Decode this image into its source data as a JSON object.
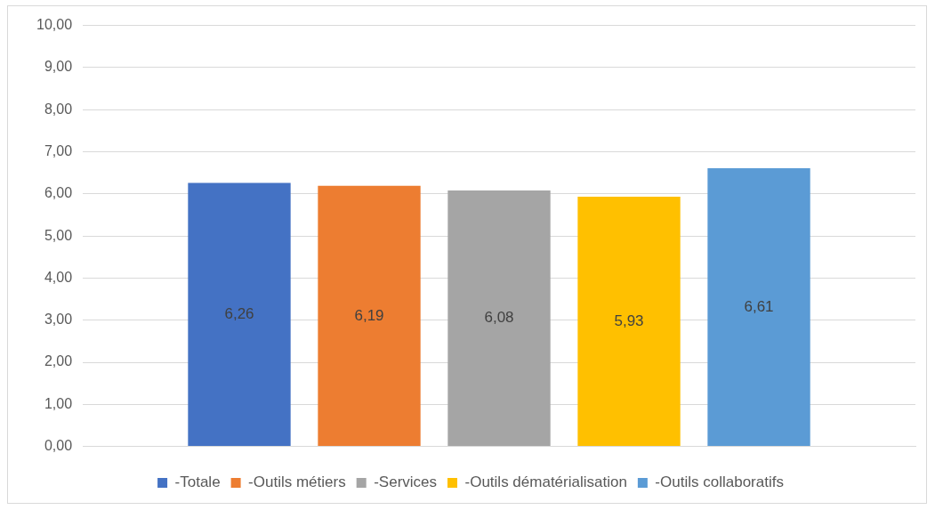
{
  "chart_data": {
    "type": "bar",
    "categories": [
      null
    ],
    "series": [
      {
        "name": "-Totale",
        "color": "#4472c4",
        "values": [
          6.26
        ],
        "value_labels": [
          "6,26"
        ]
      },
      {
        "name": "-Outils métiers",
        "color": "#ed7d31",
        "values": [
          6.19
        ],
        "value_labels": [
          "6,19"
        ]
      },
      {
        "name": "-Services",
        "color": "#a5a5a5",
        "values": [
          6.08
        ],
        "value_labels": [
          "6,08"
        ]
      },
      {
        "name": "-Outils dématérialisation",
        "color": "#ffc000",
        "values": [
          5.93
        ],
        "value_labels": [
          "5,93"
        ]
      },
      {
        "name": "-Outils collaboratifs",
        "color": "#5b9bd5",
        "values": [
          6.61
        ],
        "value_labels": [
          "6,61"
        ]
      }
    ],
    "ylim": [
      0,
      10
    ],
    "yticks": [
      {
        "value": 0,
        "label": "0,00"
      },
      {
        "value": 1,
        "label": "1,00"
      },
      {
        "value": 2,
        "label": "2,00"
      },
      {
        "value": 3,
        "label": "3,00"
      },
      {
        "value": 4,
        "label": "4,00"
      },
      {
        "value": 5,
        "label": "5,00"
      },
      {
        "value": 6,
        "label": "6,00"
      },
      {
        "value": 7,
        "label": "7,00"
      },
      {
        "value": 8,
        "label": "8,00"
      },
      {
        "value": 9,
        "label": "9,00"
      },
      {
        "value": 10,
        "label": "10,00"
      }
    ],
    "grid": "y",
    "legend": "bottom"
  }
}
